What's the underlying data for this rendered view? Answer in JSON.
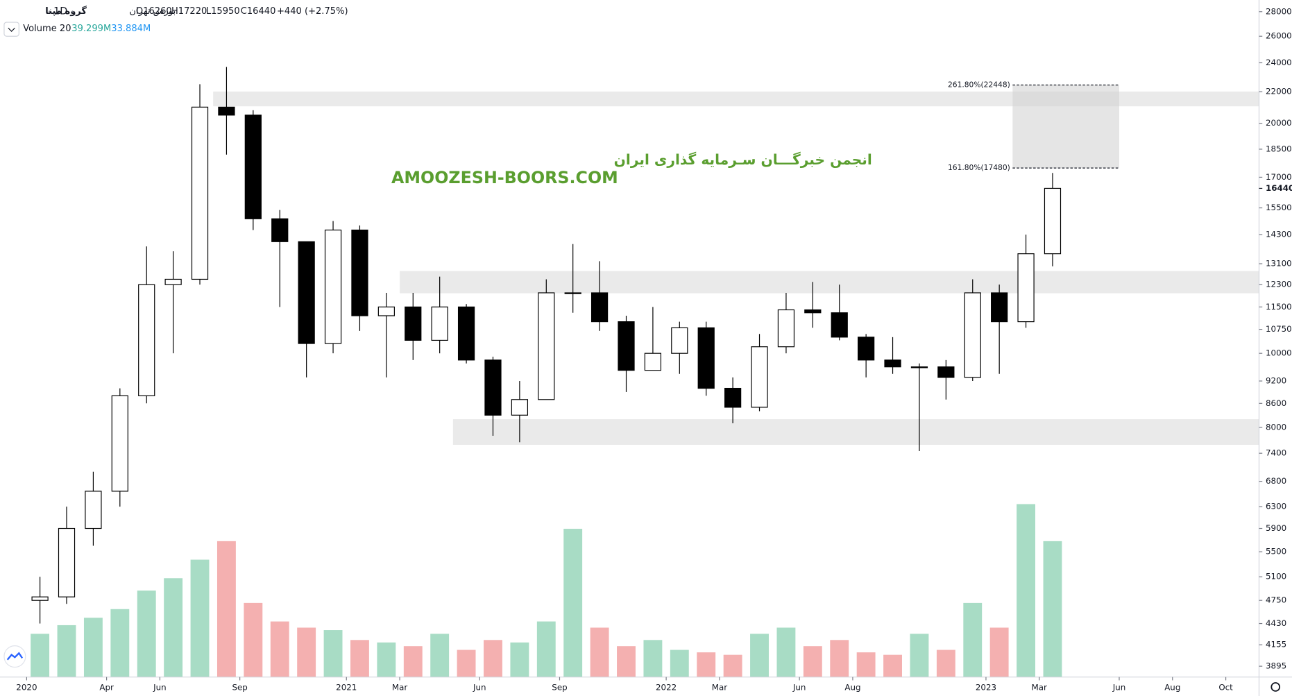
{
  "chart_data": {
    "type": "candlestick",
    "header": {
      "symbol": "گروه مپنا",
      "interval": "1D",
      "exchange": "بورس تهران",
      "open": "O16260",
      "high": "H17220",
      "low": "L15950",
      "close": "C16440",
      "change": "+440 (+2.75%)"
    },
    "volume_legend": {
      "label": "Volume 20",
      "values": [
        "39.299M",
        "33.884M"
      ]
    },
    "watermark": [
      "انجمن خبرگـــان سـرمایه گذاری ایران",
      "AMOOZESH-BOORS.COM"
    ],
    "x": [
      "2020-01",
      "2020-02",
      "2020-03",
      "2020-04",
      "2020-05",
      "2020-06",
      "2020-07",
      "2020-08",
      "2020-09",
      "2020-10",
      "2020-11",
      "2020-12",
      "2021-01",
      "2021-02",
      "2021-03",
      "2021-04",
      "2021-05",
      "2021-06",
      "2021-07",
      "2021-08",
      "2021-09",
      "2021-10",
      "2021-11",
      "2021-12",
      "2022-01",
      "2022-02",
      "2022-03",
      "2022-04",
      "2022-05",
      "2022-06",
      "2022-07",
      "2022-08",
      "2022-09",
      "2022-10",
      "2022-11",
      "2022-12",
      "2023-01",
      "2023-02",
      "2023-03"
    ],
    "open": [
      4750,
      4800,
      5900,
      6600,
      8800,
      12300,
      12500,
      21000,
      20500,
      15000,
      14000,
      10300,
      14500,
      11200,
      11500,
      10400,
      11500,
      9800,
      8300,
      8700,
      12000,
      12000,
      11000,
      9500,
      10000,
      10800,
      9000,
      8500,
      10200,
      11400,
      11300,
      10500,
      9800,
      9600,
      9600,
      9300,
      12000,
      11000,
      13500
    ],
    "high": [
      5100,
      6300,
      7000,
      9000,
      13800,
      13600,
      22500,
      23700,
      20800,
      15400,
      14000,
      14900,
      14700,
      12000,
      12000,
      12600,
      11600,
      9900,
      9200,
      12500,
      13900,
      13200,
      11200,
      11500,
      11000,
      11000,
      9300,
      10600,
      12000,
      12400,
      12300,
      10600,
      10500,
      9700,
      9800,
      12500,
      12300,
      14300,
      17220
    ],
    "low": [
      4430,
      4700,
      5600,
      6300,
      8600,
      10000,
      12300,
      18200,
      14500,
      11500,
      9300,
      10000,
      10700,
      9300,
      9800,
      10000,
      9700,
      7800,
      7650,
      8700,
      11300,
      10700,
      8900,
      9500,
      9400,
      8800,
      8100,
      8400,
      10000,
      10800,
      10400,
      9300,
      9400,
      7450,
      8700,
      9200,
      9400,
      10800,
      13000
    ],
    "close": [
      4800,
      5900,
      6600,
      8800,
      12300,
      12500,
      21000,
      20500,
      15000,
      14000,
      10300,
      14500,
      11200,
      11500,
      10400,
      11500,
      9800,
      8300,
      8700,
      12000,
      12000,
      11000,
      9500,
      10000,
      10800,
      9000,
      8500,
      10200,
      11400,
      11300,
      10500,
      9800,
      9600,
      9600,
      9300,
      12000,
      11000,
      13500,
      16440
    ],
    "volume": [
      35,
      42,
      48,
      55,
      70,
      80,
      95,
      110,
      60,
      45,
      40,
      38,
      30,
      28,
      25,
      35,
      22,
      30,
      28,
      45,
      120,
      40,
      25,
      30,
      22,
      20,
      18,
      35,
      40,
      25,
      30,
      20,
      18,
      35,
      22,
      60,
      40,
      140,
      110
    ],
    "candle_color": "#000000",
    "volume_up_color": "#a8dcc5",
    "volume_down_color": "#f4b0b0",
    "log": true,
    "ylim": [
      3770,
      29000
    ],
    "yticks": [
      3895,
      4155,
      4430,
      4750,
      5100,
      5500,
      5900,
      6300,
      6800,
      7400,
      8000,
      8600,
      9200,
      10000,
      10750,
      11500,
      12300,
      13100,
      14300,
      15500,
      17000,
      18500,
      20000,
      22000,
      24000,
      26000,
      28000
    ],
    "last_price": 16440,
    "xlim": [
      "2019-12",
      "2023-11"
    ],
    "xticks": [
      {
        "value": "2020-01",
        "label": "2020"
      },
      {
        "value": "2020-04",
        "label": "Apr"
      },
      {
        "value": "2020-06",
        "label": "Jun"
      },
      {
        "value": "2020-09",
        "label": "Sep"
      },
      {
        "value": "2021-01",
        "label": "2021"
      },
      {
        "value": "2021-03",
        "label": "Mar"
      },
      {
        "value": "2021-06",
        "label": "Jun"
      },
      {
        "value": "2021-09",
        "label": "Sep"
      },
      {
        "value": "2022-01",
        "label": "2022"
      },
      {
        "value": "2022-03",
        "label": "Mar"
      },
      {
        "value": "2022-06",
        "label": "Jun"
      },
      {
        "value": "2022-08",
        "label": "Aug"
      },
      {
        "value": "2023-01",
        "label": "2023"
      },
      {
        "value": "2023-03",
        "label": "Mar"
      },
      {
        "value": "2023-06",
        "label": "Jun"
      },
      {
        "value": "2023-08",
        "label": "Aug"
      },
      {
        "value": "2023-10",
        "label": "Oct"
      }
    ],
    "zones": [
      {
        "start": "2020-08",
        "low": 21050,
        "high": 22010
      },
      {
        "start": "2021-03",
        "low": 11985,
        "high": 12815
      },
      {
        "start": "2021-05",
        "low": 7590,
        "high": 8200
      }
    ],
    "fib": {
      "start": "2023-02",
      "end": "2023-06",
      "levels": [
        {
          "value": 22448,
          "label": "261.80%(22448)"
        },
        {
          "value": 17480,
          "label": "161.80%(17480)"
        }
      ]
    },
    "grid": false
  }
}
